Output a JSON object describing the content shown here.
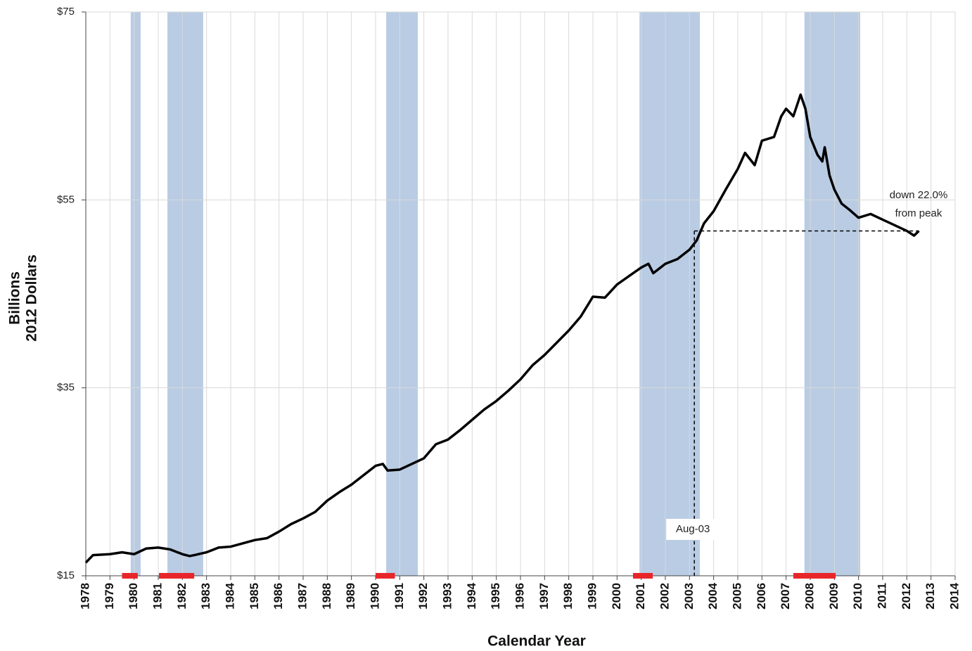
{
  "chart_data": {
    "type": "line",
    "x_title": "Calendar Year",
    "y_title": [
      "Billions",
      "2012 Dollars"
    ],
    "xlim": [
      1978,
      2014
    ],
    "xticks": [
      1978,
      1979,
      1980,
      1981,
      1982,
      1983,
      1984,
      1985,
      1986,
      1987,
      1988,
      1989,
      1990,
      1991,
      1992,
      1993,
      1994,
      1995,
      1996,
      1997,
      1998,
      1999,
      2000,
      2001,
      2002,
      2003,
      2004,
      2005,
      2006,
      2007,
      2008,
      2009,
      2010,
      2011,
      2012,
      2013,
      2014
    ],
    "ylim": [
      15,
      75
    ],
    "yticks": [
      {
        "value": 15,
        "label": "$15"
      },
      {
        "value": 35,
        "label": "$35"
      },
      {
        "value": 55,
        "label": "$55"
      },
      {
        "value": 75,
        "label": "$75"
      }
    ],
    "grid": true,
    "x": [
      1978.0,
      1978.3,
      1979.0,
      1979.5,
      1980.0,
      1980.5,
      1981.0,
      1981.5,
      1982.0,
      1982.3,
      1982.5,
      1983.0,
      1983.5,
      1984.0,
      1985.0,
      1985.5,
      1986.0,
      1986.5,
      1987.0,
      1987.5,
      1988.0,
      1988.5,
      1989.0,
      1989.5,
      1990.0,
      1990.3,
      1990.5,
      1991.0,
      1991.5,
      1992.0,
      1992.5,
      1993.0,
      1993.5,
      1994.0,
      1994.5,
      1995.0,
      1995.5,
      1996.0,
      1996.5,
      1997.0,
      1997.5,
      1998.0,
      1998.5,
      1999.0,
      1999.5,
      2000.0,
      2000.5,
      2001.0,
      2001.3,
      2001.5,
      2002.0,
      2002.5,
      2003.0,
      2003.3,
      2003.6,
      2004.0,
      2004.5,
      2005.0,
      2005.3,
      2005.7,
      2006.0,
      2006.5,
      2006.8,
      2007.0,
      2007.3,
      2007.6,
      2007.8,
      2008.0,
      2008.3,
      2008.5,
      2008.6,
      2008.8,
      2009.0,
      2009.3,
      2009.6,
      2010.0,
      2010.5,
      2011.0,
      2011.5,
      2012.0,
      2012.3,
      2012.5
    ],
    "series": [
      {
        "color": "#000000",
        "values": [
          16.4,
          17.2,
          17.3,
          17.5,
          17.3,
          17.9,
          18.0,
          17.8,
          17.3,
          17.1,
          17.2,
          17.5,
          18.0,
          18.1,
          18.8,
          19.0,
          19.7,
          20.5,
          21.1,
          21.8,
          23.0,
          23.9,
          24.7,
          25.7,
          26.7,
          26.9,
          26.2,
          26.3,
          26.9,
          27.5,
          29.0,
          29.5,
          30.5,
          31.6,
          32.7,
          33.6,
          34.7,
          35.9,
          37.4,
          38.5,
          39.8,
          41.1,
          42.6,
          44.7,
          44.6,
          46.0,
          46.9,
          47.8,
          48.2,
          47.2,
          48.2,
          48.7,
          49.7,
          50.7,
          52.5,
          53.8,
          56.1,
          58.3,
          60.0,
          58.7,
          61.3,
          61.7,
          63.9,
          64.7,
          63.9,
          66.2,
          64.7,
          61.7,
          59.8,
          59.1,
          60.6,
          57.6,
          56.1,
          54.6,
          54.0,
          53.1,
          53.5,
          52.9,
          52.3,
          51.7,
          51.2,
          51.7
        ]
      }
    ],
    "shaded_periods": [
      [
        1979.86,
        1980.27
      ],
      [
        1981.38,
        1982.86
      ],
      [
        1990.44,
        1991.75
      ],
      [
        2000.93,
        2003.43
      ],
      [
        2007.76,
        2010.07
      ]
    ],
    "shaded_color": "#b9cce4",
    "recessions": [
      [
        1979.5,
        1980.15
      ],
      [
        1981.03,
        1982.49
      ],
      [
        1990.0,
        1990.8
      ],
      [
        2000.66,
        2001.48
      ],
      [
        2007.3,
        2009.05
      ]
    ],
    "recession_color": "#e8262a",
    "reference": {
      "x": 2003.2,
      "y": 51.7,
      "label": "Aug-03"
    },
    "annotation": [
      "down 22.0%",
      "from peak"
    ]
  }
}
